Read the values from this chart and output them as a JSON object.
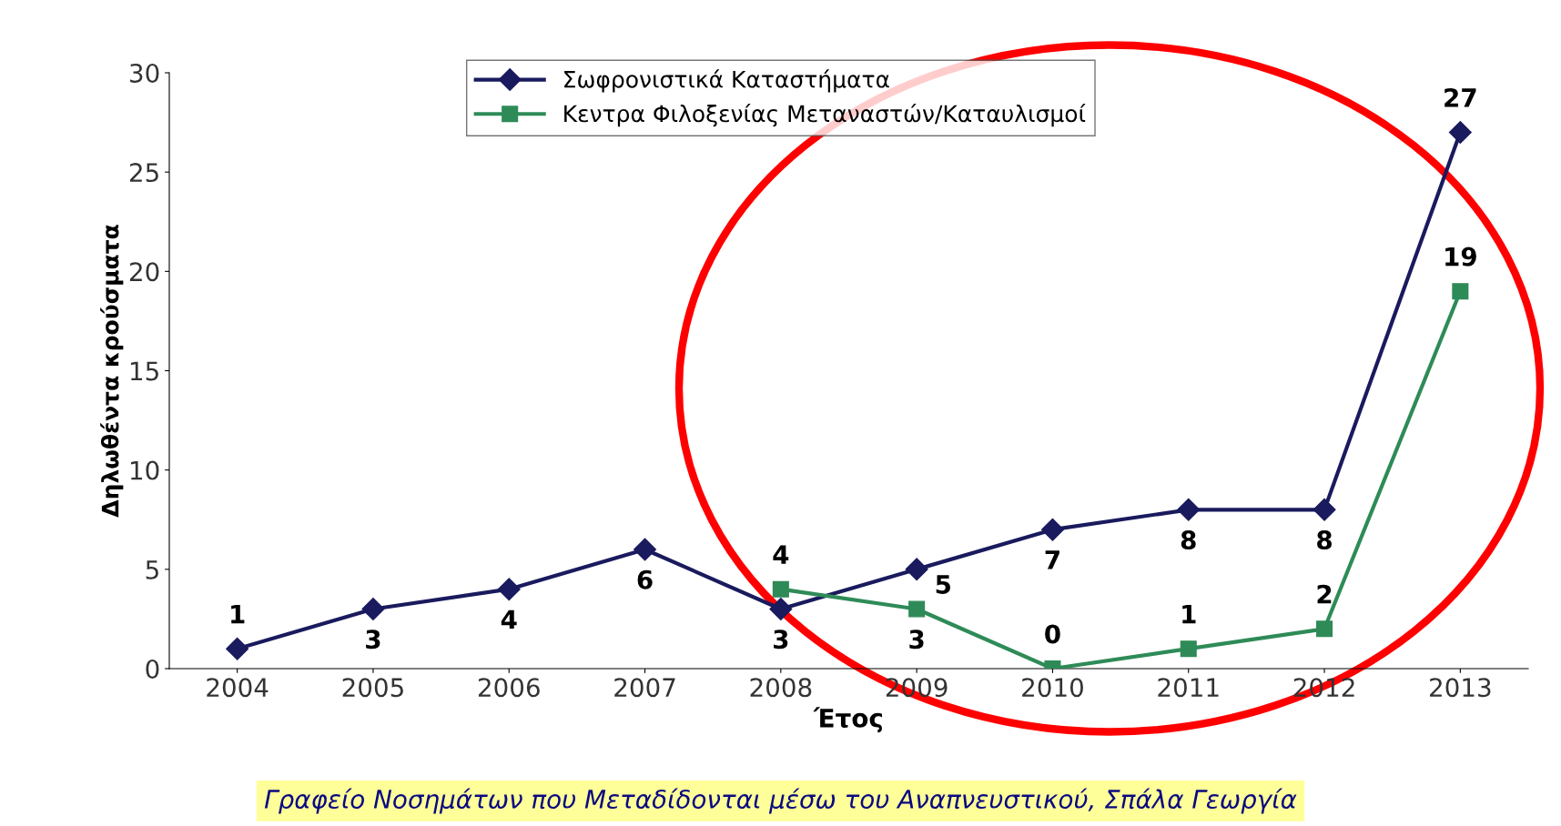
{
  "chart_data": {
    "type": "line",
    "xlabel": "Έτος",
    "ylabel": "Δηλωθέντα κρούσματα",
    "categories": [
      "2004",
      "2005",
      "2006",
      "2007",
      "2008",
      "2009",
      "2010",
      "2011",
      "2012",
      "2013"
    ],
    "series": [
      {
        "name": "Σωφρονιστικά Καταστήματα",
        "color": "#1a1a5e",
        "marker": "diamond",
        "values": [
          1,
          3,
          4,
          6,
          3,
          5,
          7,
          8,
          8,
          27
        ]
      },
      {
        "name": "Κεντρα Φιλοξενίας Μεταναστών/Καταυλισμοί",
        "color": "#2e8b57",
        "marker": "square",
        "values": [
          null,
          null,
          null,
          null,
          4,
          3,
          0,
          1,
          2,
          19
        ]
      }
    ],
    "ylim": [
      0,
      30
    ],
    "yticks": [
      0,
      5,
      10,
      15,
      20,
      25,
      30
    ],
    "grid": false,
    "legend": "top",
    "data_labels": true,
    "line_style": "solid",
    "annotations": [
      "Γραφείο Νοσημάτων που Μεταδίδονται μέσω του Αναπνευστικού, Σπάλα Γεωργία"
    ]
  }
}
